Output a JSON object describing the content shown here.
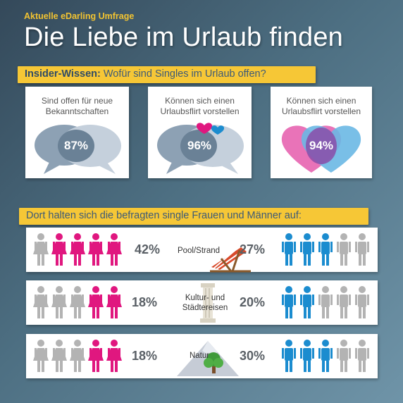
{
  "header": {
    "kicker": "Aktuelle eDarling Umfrage",
    "title": "Die Liebe im Urlaub finden"
  },
  "section1": {
    "bold": "Insider-Wissen:",
    "text": " Wofür sind Singles im Urlaub offen?",
    "cards": [
      {
        "line1": "Sind offen für neue",
        "line2": "Bekanntschaften",
        "value": "87%",
        "graphic": "speech-bubbles"
      },
      {
        "line1": "Können sich einen",
        "line2": "Urlaubsflirt vorstellen",
        "value": "96%",
        "graphic": "speech-bubbles-with-hearts"
      },
      {
        "line1": "Können sich einen",
        "line2": "Urlaubsflirt vorstellen",
        "value": "94%",
        "graphic": "overlapping-hearts"
      }
    ]
  },
  "section2": {
    "text": "Dort halten sich die befragten single Frauen und Männer auf:",
    "rows": [
      {
        "women": "42%",
        "women_highlighted": 4,
        "label1": "Pool/Strand",
        "label2": "",
        "men": "27%",
        "men_highlighted": 3,
        "icon": "beach-chair"
      },
      {
        "women": "18%",
        "women_highlighted": 2,
        "label1": "Kultur- und",
        "label2": "Städtereisen",
        "men": "20%",
        "men_highlighted": 2,
        "icon": "column"
      },
      {
        "women": "18%",
        "women_highlighted": 2,
        "label1": "Natur",
        "label2": "",
        "men": "30%",
        "men_highlighted": 3,
        "icon": "mountain-tree"
      }
    ]
  },
  "colors": {
    "pink": "#e0177f",
    "blue": "#1b8ccf",
    "gray": "#b3b3b3",
    "band": "#f6c736"
  }
}
